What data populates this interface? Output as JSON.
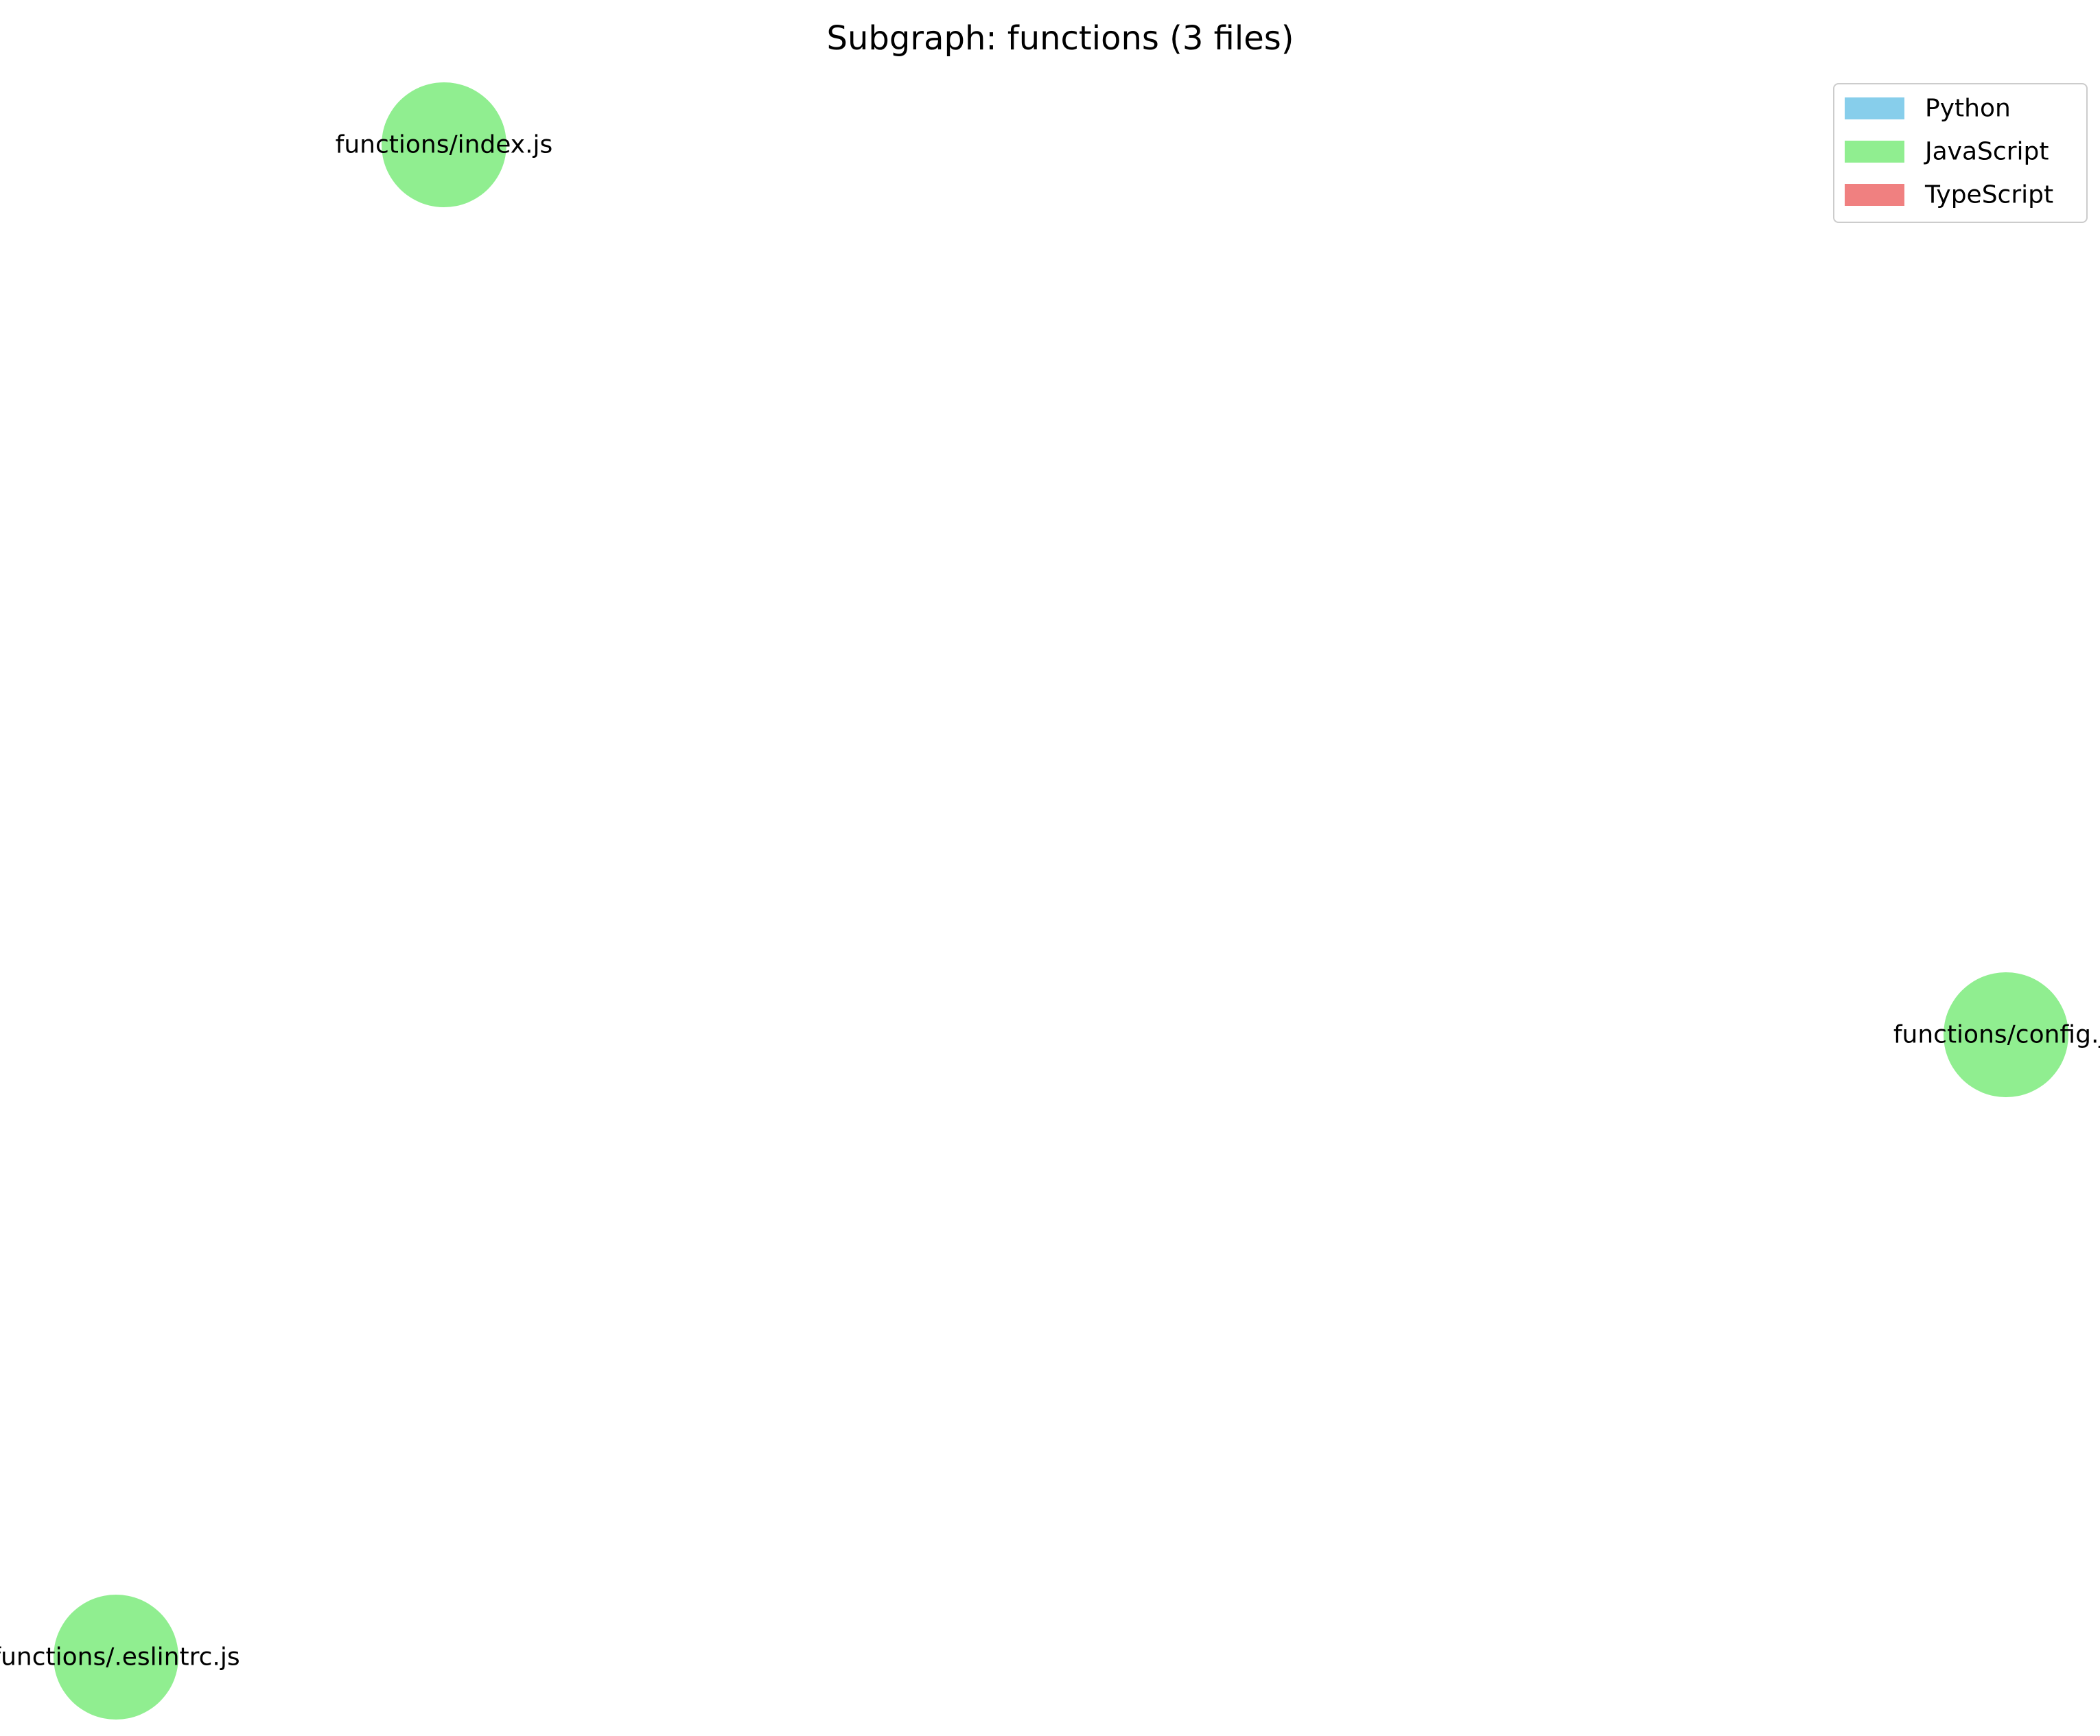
{
  "title": "Subgraph: functions (3 files)",
  "legend": [
    {
      "label": "Python",
      "color": "#87ceeb"
    },
    {
      "label": "JavaScript",
      "color": "#90ee90"
    },
    {
      "label": "TypeScript",
      "color": "#f08080"
    }
  ],
  "nodes": [
    {
      "id": "index",
      "label": "functions/index.js",
      "language": "JavaScript",
      "color": "#90ee90"
    },
    {
      "id": "config",
      "label": "functions/config.js",
      "language": "JavaScript",
      "color": "#90ee90"
    },
    {
      "id": "eslintrc",
      "label": "functions/.eslintrc.js",
      "language": "JavaScript",
      "color": "#90ee90"
    }
  ],
  "edges": []
}
